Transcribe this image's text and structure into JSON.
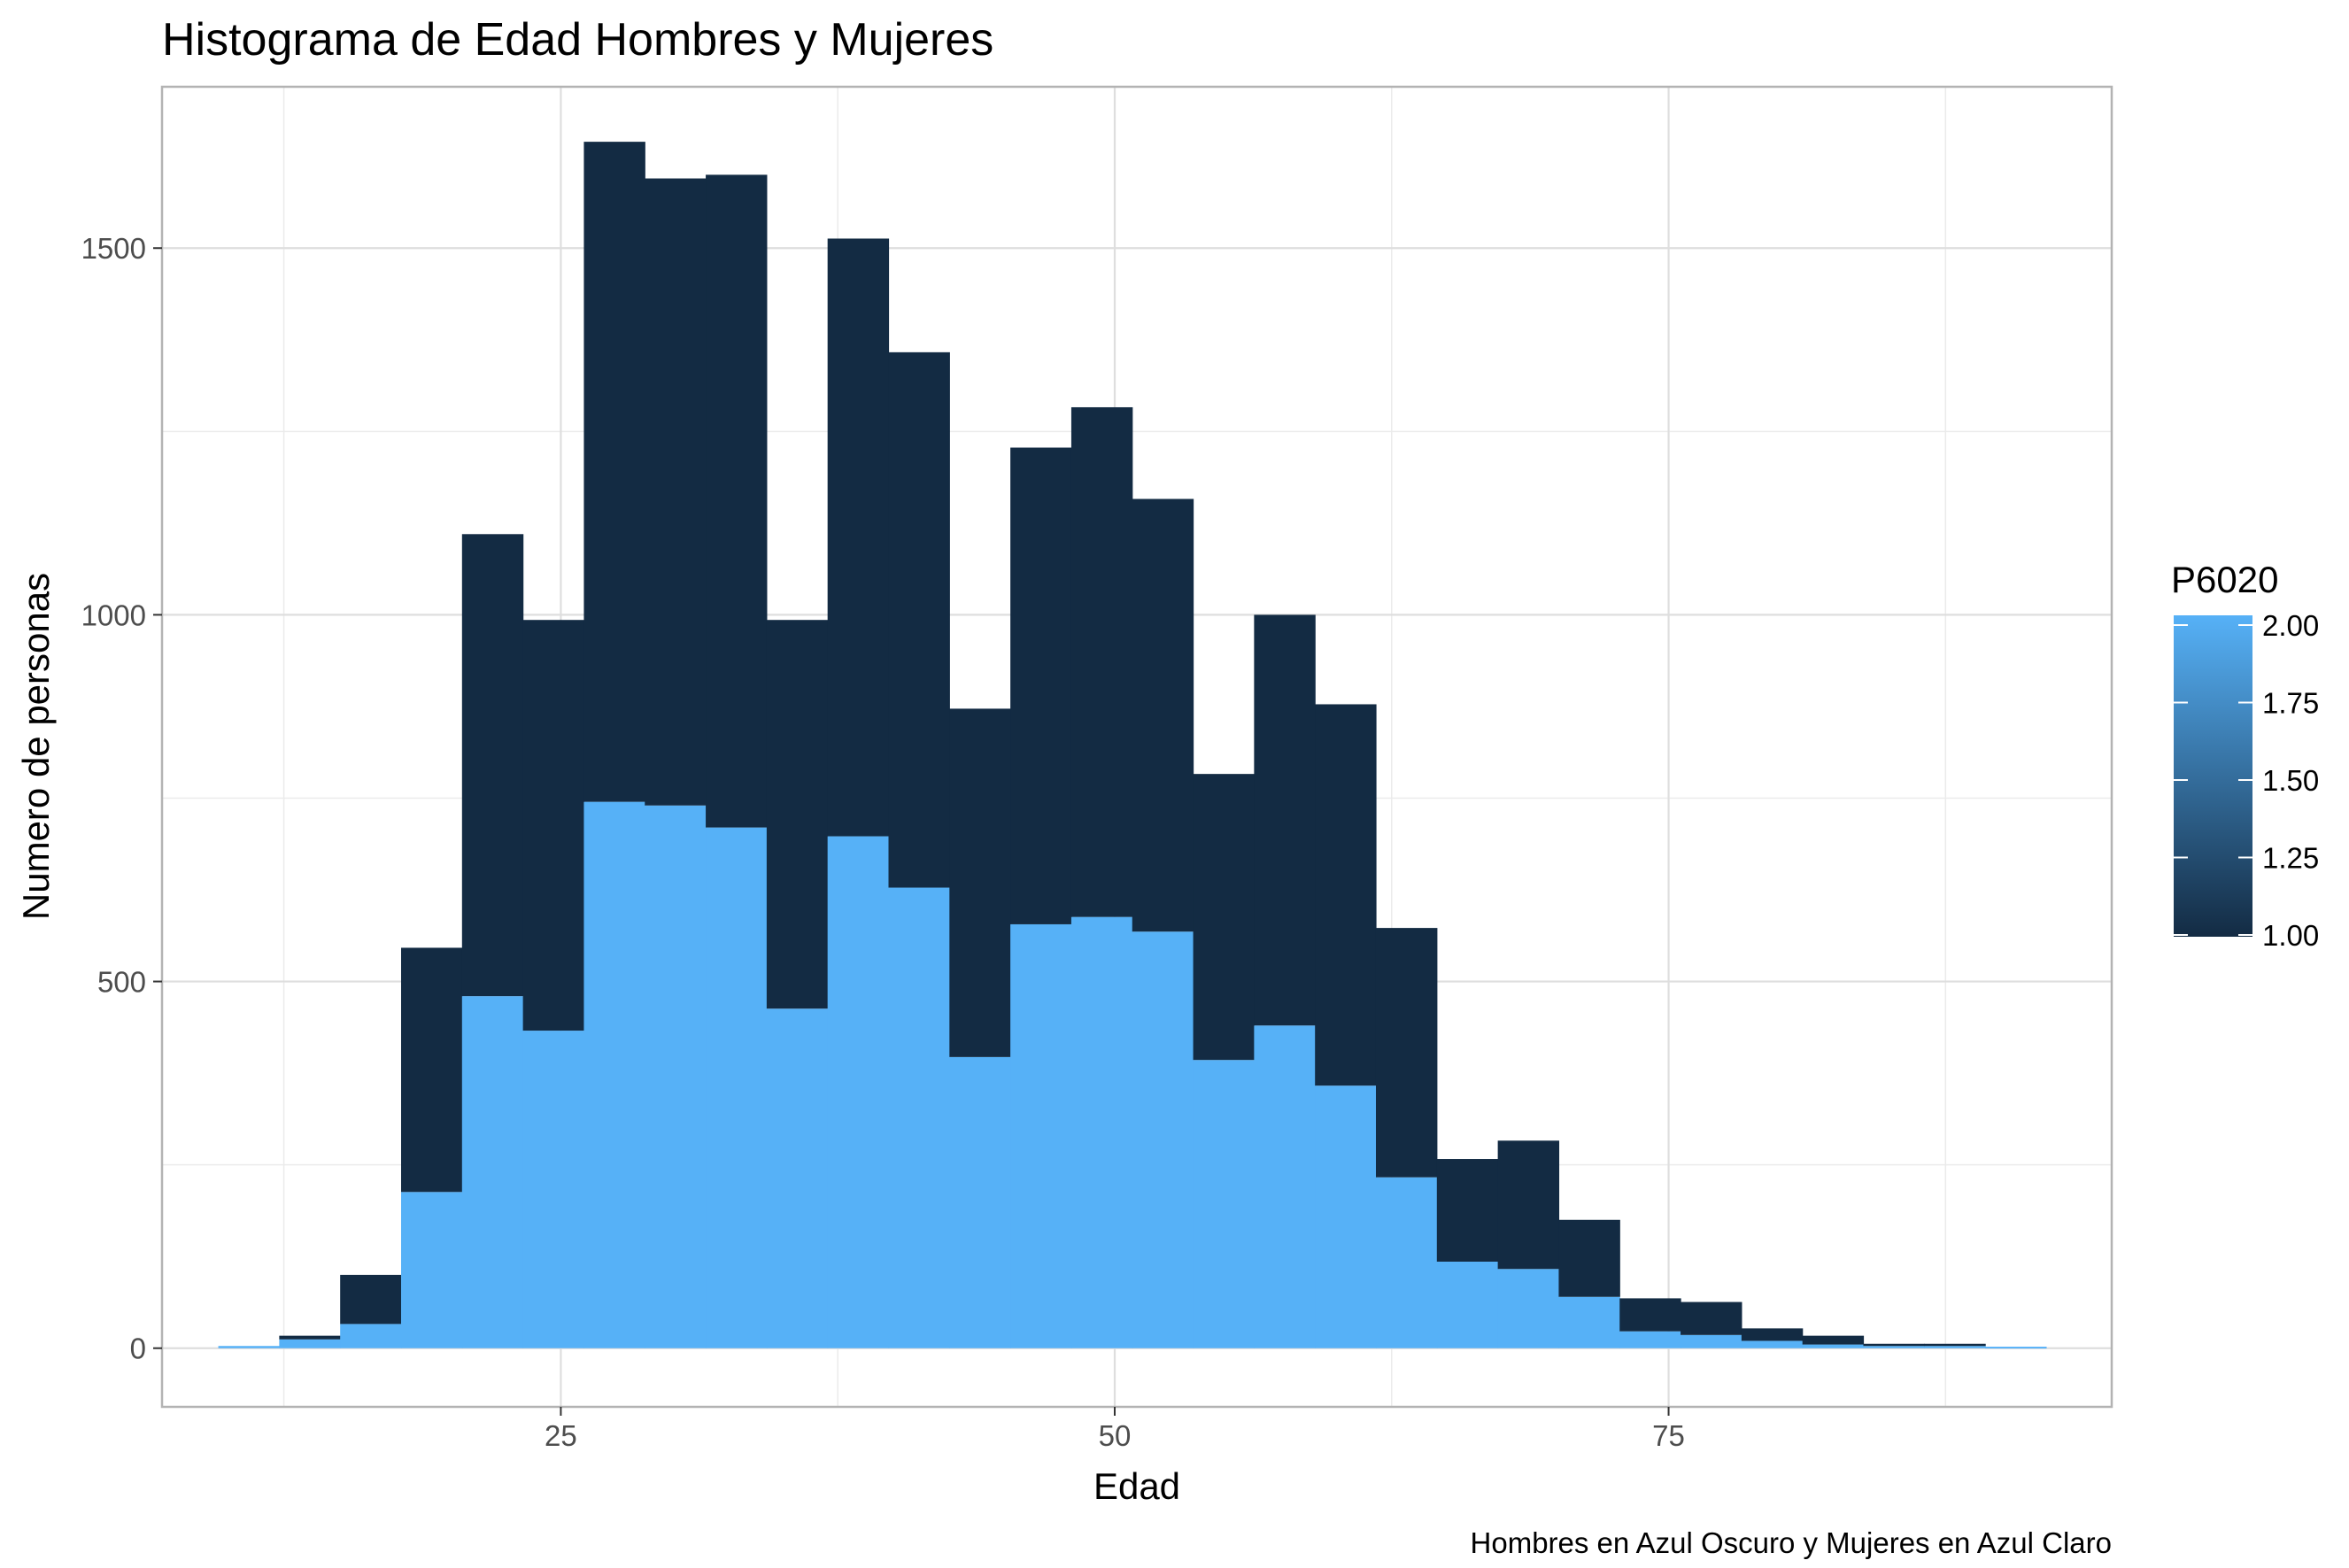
{
  "chart_data": {
    "type": "bar",
    "title": "Histograma de Edad Hombres y Mujeres",
    "xlabel": "Edad",
    "ylabel": "Numero de personas",
    "caption": "Hombres en Azul Oscuro  y Mujeres en Azul Claro",
    "xlim": [
      7,
      95
    ],
    "ylim": [
      -80,
      1720
    ],
    "x_ticks": [
      25,
      50,
      75
    ],
    "y_ticks": [
      0,
      500,
      1000,
      1500
    ],
    "grid": true,
    "stacked": true,
    "bin_edges": [
      9.54,
      12.29,
      15.04,
      17.79,
      20.54,
      23.29,
      26.04,
      28.79,
      31.54,
      34.29,
      37.04,
      39.79,
      42.54,
      45.29,
      48.04,
      50.79,
      53.54,
      56.29,
      59.04,
      61.79,
      64.54,
      67.29,
      70.04,
      72.79,
      75.54,
      78.29,
      81.04,
      83.79,
      86.54,
      89.29,
      92.04
    ],
    "series": [
      {
        "name": "1.00",
        "color": "#132B43",
        "values": [
          0,
          5,
          67,
          333,
          630,
          560,
          900,
          855,
          890,
          530,
          815,
          730,
          475,
          650,
          695,
          590,
          390,
          560,
          520,
          340,
          140,
          175,
          105,
          45,
          45,
          17,
          12,
          3,
          3,
          0
        ]
      },
      {
        "name": "2.00",
        "color": "#56B1F7",
        "values": [
          3,
          12,
          33,
          213,
          480,
          433,
          745,
          740,
          710,
          463,
          698,
          628,
          397,
          578,
          588,
          568,
          393,
          440,
          358,
          233,
          118,
          108,
          70,
          23,
          18,
          10,
          5,
          3,
          3,
          2
        ]
      }
    ],
    "legend": {
      "title": "P6020",
      "placement": "right",
      "labels": [
        "2.00",
        "1.75",
        "1.50",
        "1.25",
        "1.00"
      ],
      "color_low": "#132B43",
      "color_high": "#56B1F7"
    }
  }
}
